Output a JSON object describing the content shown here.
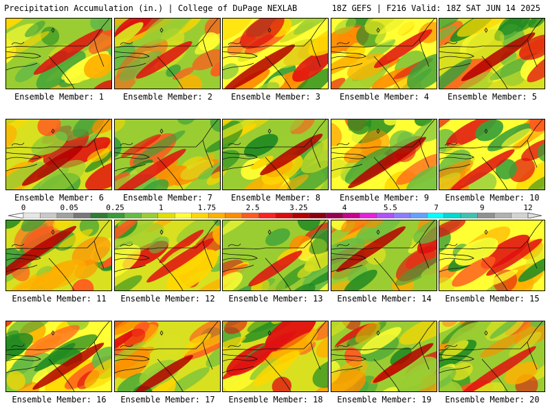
{
  "header": {
    "title": "Precipitation Accumulation (in.) | College of DuPage NEXLAB",
    "run_info": "18Z GEFS | F216 Valid: 18Z SAT JUN 14 2025"
  },
  "members": [
    {
      "label": "Ensemble Member: 1"
    },
    {
      "label": "Ensemble Member: 2"
    },
    {
      "label": "Ensemble Member: 3"
    },
    {
      "label": "Ensemble Member: 4"
    },
    {
      "label": "Ensemble Member: 5"
    },
    {
      "label": "Ensemble Member: 6"
    },
    {
      "label": "Ensemble Member: 7"
    },
    {
      "label": "Ensemble Member: 8"
    },
    {
      "label": "Ensemble Member: 9"
    },
    {
      "label": "Ensemble Member: 10"
    },
    {
      "label": "Ensemble Member: 11"
    },
    {
      "label": "Ensemble Member: 12"
    },
    {
      "label": "Ensemble Member: 13"
    },
    {
      "label": "Ensemble Member: 14"
    },
    {
      "label": "Ensemble Member: 15"
    },
    {
      "label": "Ensemble Member: 16"
    },
    {
      "label": "Ensemble Member: 17"
    },
    {
      "label": "Ensemble Member: 18"
    },
    {
      "label": "Ensemble Member: 19"
    },
    {
      "label": "Ensemble Member: 20"
    }
  ],
  "legend": {
    "tick_labels": [
      "0",
      "0.05",
      "0.25",
      "1",
      "1.75",
      "2.5",
      "3.25",
      "4",
      "5.5",
      "7",
      "9",
      "12"
    ],
    "colors": [
      "#e6e6e6",
      "#c8c8c8",
      "#a0a0a0",
      "#787878",
      "#2e7d32",
      "#3a9a3a",
      "#66bb44",
      "#9acd32",
      "#e0e000",
      "#ffff33",
      "#ffd700",
      "#ffb000",
      "#ff8c00",
      "#ff5a1e",
      "#ff2020",
      "#dd0a0a",
      "#b40000",
      "#8b0010",
      "#9a0050",
      "#c8008c",
      "#e81fd8",
      "#b050ff",
      "#8c7cff",
      "#64a0ff",
      "#00ffff",
      "#00d8d0",
      "#40c0b0",
      "#909090",
      "#b0b0b0",
      "#d2d2d2"
    ]
  }
}
